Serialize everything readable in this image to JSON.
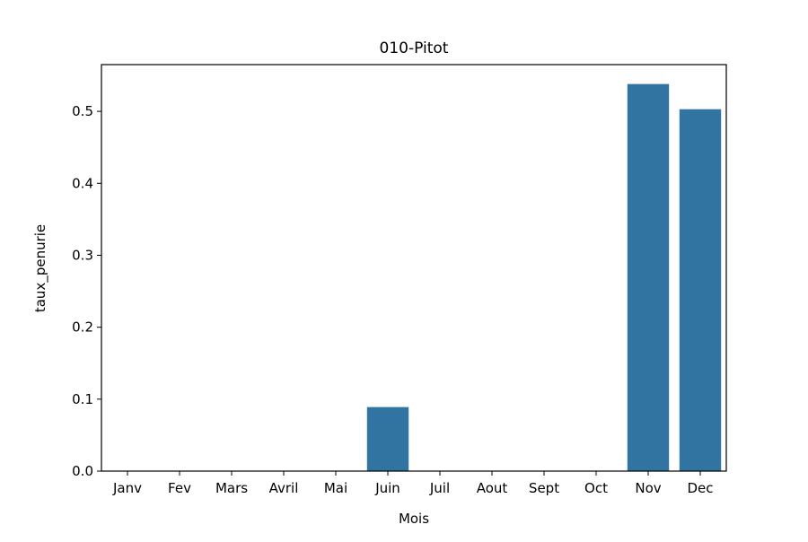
{
  "chart_data": {
    "type": "bar",
    "title": "010-Pitot",
    "xlabel": "Mois",
    "ylabel": "taux_penurie",
    "categories": [
      "Janv",
      "Fev",
      "Mars",
      "Avril",
      "Mai",
      "Juin",
      "Juil",
      "Aout",
      "Sept",
      "Oct",
      "Nov",
      "Dec"
    ],
    "values": [
      0,
      0,
      0,
      0,
      0,
      0.089,
      0,
      0,
      0,
      0,
      0.538,
      0.503
    ],
    "ylim": [
      0,
      0.565
    ],
    "yticks": [
      "0.0",
      "0.1",
      "0.2",
      "0.3",
      "0.4",
      "0.5"
    ],
    "bar_color": "#3274a1",
    "grid": false,
    "legend": "none"
  }
}
